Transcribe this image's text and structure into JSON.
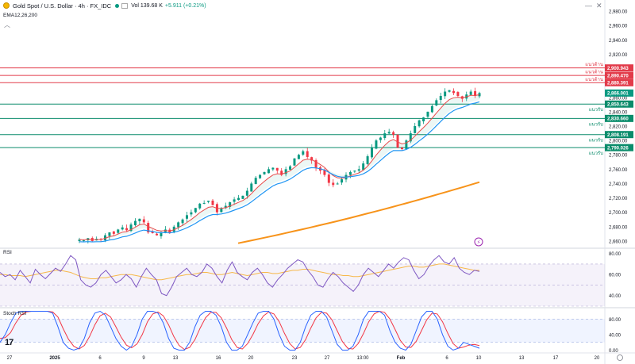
{
  "header": {
    "symbol": "Gold Spot / U.S. Dollar · 4h · FX_IDC",
    "volume_label": "Vol 139.68 K",
    "change_label": "+5.911 (+0.21%)",
    "indicator": "EMA12,26,200"
  },
  "panes": {
    "rsi_label": "RSI",
    "stoch_label": "Stoch RSI"
  },
  "icons": {
    "logo": "gold-coin-icon",
    "tv": "tradingview-logo-icon"
  },
  "colors": {
    "up": "#089981",
    "down": "#f23645",
    "ema12": "#e84a4a",
    "ema26": "#2196f3",
    "ema200": "#f7931a",
    "resistance": "#e23b4a",
    "support": "#0b8c6b",
    "rsi": "#7e57c2",
    "rsi_ma": "#f7b84b",
    "stoch_k": "#2962ff",
    "stoch_d": "#f23645"
  },
  "chart_data": [
    {
      "type": "candlestick",
      "title": "Gold Spot / U.S. Dollar · 4h · FX_IDC",
      "ylim": [
        2650,
        2990
      ],
      "y_ticks": [
        2660,
        2680,
        2700,
        2720,
        2740,
        2760,
        2780,
        2800,
        2820,
        2840,
        2860,
        2880,
        2900,
        2920,
        2940,
        2960,
        2980
      ],
      "y_tick_labels": [
        "2,660.00",
        "2,680.00",
        "2,700.00",
        "2,720.00",
        "2,740.00",
        "2,760.00",
        "2,780.00",
        "2,800.00",
        "2,820.00",
        "2,840.00",
        "2,860.00",
        "2,880.00",
        "2,900.00",
        "2,920.00",
        "2,940.00",
        "2,960.00",
        "2,980.00"
      ],
      "x_tick_labels": [
        "27",
        "2025",
        "6",
        "9",
        "13",
        "16",
        "20",
        "23",
        "27",
        "13:00",
        "Feb",
        "6",
        "10",
        "13",
        "17",
        "20"
      ],
      "candles_approx": {
        "close_path": [
          2662,
          2661,
          2664,
          2660,
          2663,
          2662,
          2668,
          2672,
          2670,
          2676,
          2679,
          2675,
          2683,
          2688,
          2691,
          2686,
          2672,
          2671,
          2668,
          2672,
          2676,
          2672,
          2680,
          2686,
          2690,
          2696,
          2700,
          2706,
          2712,
          2713,
          2716,
          2710,
          2700,
          2705,
          2709,
          2714,
          2718,
          2720,
          2723,
          2730,
          2740,
          2748,
          2752,
          2756,
          2760,
          2762,
          2758,
          2752,
          2760,
          2764,
          2775,
          2780,
          2785,
          2777,
          2772,
          2762,
          2758,
          2752,
          2741,
          2738,
          2740,
          2746,
          2752,
          2756,
          2758,
          2760,
          2768,
          2778,
          2790,
          2800,
          2804,
          2810,
          2812,
          2808,
          2790,
          2788,
          2800,
          2810,
          2820,
          2828,
          2832,
          2840,
          2848,
          2856,
          2862,
          2868,
          2870,
          2866,
          2862,
          2858,
          2864,
          2868,
          2862,
          2866
        ]
      },
      "price_labels": [
        "2,900.943",
        "2,890.470",
        "2,880.391",
        "2,866.001",
        "2,850.643",
        "2,830.660",
        "2,808.191",
        "2,790.026"
      ],
      "current_price": 2866.001,
      "resistance_levels": [
        2900.943,
        2890.47,
        2880.391
      ],
      "resistance_label": "แนวต้าน",
      "support_levels": [
        2850.643,
        2830.66,
        2808.191,
        2790.026
      ],
      "support_label": "แนวรับ",
      "series": [
        {
          "name": "EMA12",
          "description": "red, hugs candles"
        },
        {
          "name": "EMA26",
          "description": "blue, just below EMA12"
        },
        {
          "name": "EMA200",
          "description": "orange, rising from ~2,657 to ~2,742"
        }
      ],
      "ema200_endpoints": [
        2657,
        2742
      ]
    },
    {
      "type": "line",
      "title": "RSI",
      "ylim": [
        30,
        85
      ],
      "y_ticks": [
        40,
        60,
        80
      ],
      "y_tick_labels": [
        "40.00",
        "60.00",
        "80.00"
      ],
      "band": [
        30,
        70
      ],
      "rsi_approx": [
        62,
        58,
        60,
        55,
        64,
        58,
        52,
        65,
        60,
        56,
        61,
        66,
        63,
        70,
        78,
        74,
        55,
        50,
        48,
        52,
        60,
        64,
        58,
        52,
        55,
        60,
        56,
        48,
        58,
        66,
        60,
        55,
        42,
        40,
        48,
        58,
        62,
        66,
        60,
        58,
        62,
        70,
        66,
        58,
        52,
        64,
        72,
        62,
        58,
        55,
        62,
        66,
        60,
        52,
        48,
        55,
        60,
        66,
        70,
        74,
        72,
        64,
        58,
        50,
        48,
        56,
        62,
        58,
        52,
        48,
        44,
        50,
        60,
        66,
        62,
        58,
        64,
        70,
        66,
        72,
        76,
        74,
        64,
        56,
        60,
        68,
        74,
        78,
        72,
        70,
        76,
        66,
        62,
        60,
        64,
        63
      ],
      "rsi_ma_approx": [
        60,
        60,
        59,
        59,
        59,
        58,
        59,
        60,
        61,
        62,
        63,
        64,
        64,
        63,
        62,
        60,
        58,
        57,
        56,
        56,
        57,
        57,
        58,
        59,
        60,
        60,
        60,
        59,
        58,
        57,
        56,
        55,
        55,
        56,
        57,
        58,
        59,
        60,
        60,
        61,
        62,
        62,
        61,
        60,
        60,
        61,
        62,
        61,
        60,
        59,
        60,
        61,
        62,
        62,
        61,
        61,
        62,
        63,
        64,
        64,
        65,
        65,
        64,
        63,
        62,
        61,
        60,
        60,
        59,
        59,
        58,
        58,
        59,
        60,
        61,
        62,
        63,
        64,
        65,
        66,
        67,
        68,
        68,
        67,
        67,
        68,
        69,
        70,
        70,
        69,
        68,
        67,
        66,
        65,
        64,
        64
      ]
    },
    {
      "type": "line",
      "title": "Stoch RSI",
      "ylim": [
        -5,
        105
      ],
      "y_ticks": [
        0,
        40,
        80
      ],
      "y_tick_labels": [
        "0.00",
        "40.00",
        "80.00"
      ],
      "band": [
        20,
        80
      ],
      "k_approx": [
        20,
        40,
        70,
        95,
        100,
        100,
        100,
        100,
        100,
        100,
        95,
        60,
        20,
        5,
        0,
        5,
        30,
        70,
        95,
        100,
        90,
        60,
        30,
        10,
        0,
        10,
        40,
        80,
        100,
        100,
        95,
        70,
        30,
        5,
        0,
        0,
        20,
        60,
        90,
        100,
        100,
        90,
        60,
        20,
        0,
        0,
        10,
        40,
        70,
        95,
        100,
        100,
        80,
        40,
        10,
        0,
        0,
        20,
        60,
        90,
        100,
        100,
        85,
        50,
        15,
        0,
        0,
        10,
        40,
        80,
        100,
        100,
        100,
        90,
        50,
        20,
        5,
        0,
        15,
        50,
        85,
        100,
        100,
        80,
        40,
        10,
        0,
        5,
        20,
        15,
        10,
        5
      ],
      "d_approx": [
        30,
        32,
        45,
        70,
        90,
        98,
        100,
        100,
        100,
        100,
        98,
        85,
        55,
        28,
        10,
        3,
        12,
        35,
        65,
        88,
        95,
        85,
        60,
        33,
        13,
        6,
        16,
        40,
        73,
        93,
        98,
        88,
        65,
        35,
        12,
        2,
        7,
        27,
        57,
        83,
        97,
        97,
        83,
        57,
        27,
        7,
        3,
        17,
        40,
        68,
        88,
        98,
        93,
        73,
        43,
        17,
        3,
        7,
        27,
        57,
        83,
        97,
        95,
        78,
        50,
        22,
        5,
        3,
        17,
        43,
        73,
        93,
        100,
        97,
        80,
        53,
        25,
        8,
        7,
        23,
        50,
        78,
        95,
        93,
        73,
        43,
        17,
        5,
        8,
        13,
        15,
        12
      ]
    }
  ]
}
